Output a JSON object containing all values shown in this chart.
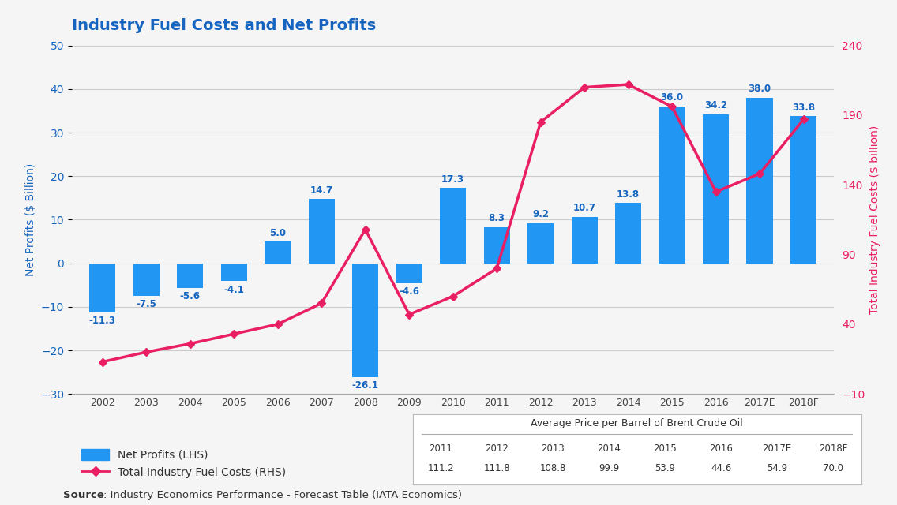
{
  "title": "Industry Fuel Costs and Net Profits",
  "years": [
    "2002",
    "2003",
    "2004",
    "2005",
    "2006",
    "2007",
    "2008",
    "2009",
    "2010",
    "2011",
    "2012",
    "2013",
    "2014",
    "2015",
    "2016",
    "2017E",
    "2018F"
  ],
  "net_profits": [
    -11.3,
    -7.5,
    -5.6,
    -4.1,
    5.0,
    14.7,
    -26.1,
    -4.6,
    17.3,
    8.3,
    9.2,
    10.7,
    13.8,
    36.0,
    34.2,
    38.0,
    33.8
  ],
  "fuel_costs_line": [
    13,
    20,
    26,
    33,
    40,
    55,
    108,
    47,
    60,
    80,
    185,
    210,
    212,
    196,
    135,
    148,
    187
  ],
  "bar_color": "#2196F3",
  "line_color": "#E91E63",
  "left_axis_label": "Net Profits ($ Billion)",
  "right_axis_label": "Total Industry Fuel Costs ($ billion)",
  "left_axis_color": "#1565C0",
  "right_axis_color": "#E91E63",
  "left_ylim": [
    -30,
    50
  ],
  "right_ylim": [
    -10,
    240
  ],
  "left_yticks": [
    -30,
    -20,
    -10,
    0,
    10,
    20,
    30,
    40,
    50
  ],
  "right_yticks": [
    -10,
    40,
    90,
    140,
    190,
    240
  ],
  "bg_color": "#F5F5F5",
  "grid_color": "#CCCCCC",
  "source_bold": "Source",
  "source_normal": ": Industry Economics Performance - Forecast Table (IATA Economics)",
  "legend_bar": "Net Profits (LHS)",
  "legend_line": "Total Industry Fuel Costs (RHS)",
  "crude_oil_years": [
    "2011",
    "2012",
    "2013",
    "2014",
    "2015",
    "2016",
    "2017E",
    "2018F"
  ],
  "crude_oil_prices": [
    "111.2",
    "111.8",
    "108.8",
    "99.9",
    "53.9",
    "44.6",
    "54.9",
    "70.0"
  ],
  "crude_oil_title": "Average Price per Barrel of Brent Crude Oil"
}
